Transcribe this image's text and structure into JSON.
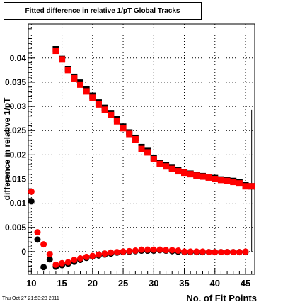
{
  "chart_data": {
    "type": "scatter",
    "title": "Fitted difference in relative 1/pT  Global Tracks",
    "xlabel": "No. of Fit Points",
    "ylabel": "difference in relative 1/pT",
    "timestamp": "Thu Oct 27 21:53:23 2011",
    "xlim": [
      9.5,
      46.5
    ],
    "ylim": [
      -0.0047,
      0.047
    ],
    "grid": true,
    "x_ticks": [
      10,
      15,
      20,
      25,
      30,
      35,
      40,
      45
    ],
    "y_ticks": [
      0,
      0.005,
      0.01,
      0.015,
      0.02,
      0.025,
      0.03,
      0.035,
      0.04
    ],
    "y_tick_labels": [
      "0",
      "0.005",
      "0.01",
      "0.015",
      "0.02",
      "0.025",
      "0.03",
      "0.035",
      "0.04"
    ],
    "colors": {
      "black_series": "#000000",
      "red_series": "#ff0000"
    },
    "series": [
      {
        "marker": "square",
        "color": "#000000",
        "points": [
          [
            14,
            0.0418
          ],
          [
            15,
            0.0398
          ],
          [
            16,
            0.0377
          ],
          [
            17,
            0.0361
          ],
          [
            18,
            0.0349
          ],
          [
            19,
            0.0336
          ],
          [
            20,
            0.0322
          ],
          [
            21,
            0.0308
          ],
          [
            22,
            0.0297
          ],
          [
            23,
            0.0286
          ],
          [
            24,
            0.0274
          ],
          [
            25,
            0.0258
          ],
          [
            26,
            0.0246
          ],
          [
            27,
            0.0235
          ],
          [
            28,
            0.0216
          ],
          [
            29,
            0.0208
          ],
          [
            30,
            0.0194
          ],
          [
            31,
            0.0183
          ],
          [
            32,
            0.0178
          ],
          [
            33,
            0.0173
          ],
          [
            34,
            0.0168
          ],
          [
            35,
            0.0164
          ],
          [
            36,
            0.0161
          ],
          [
            37,
            0.0158
          ],
          [
            38,
            0.0156
          ],
          [
            39,
            0.0154
          ],
          [
            40,
            0.0152
          ],
          [
            41,
            0.0149
          ],
          [
            42,
            0.0148
          ],
          [
            43,
            0.0146
          ],
          [
            44,
            0.0143
          ],
          [
            45,
            0.0137
          ],
          [
            46,
            0.0135
          ]
        ]
      },
      {
        "marker": "square",
        "color": "#ff0000",
        "points": [
          [
            14,
            0.0415
          ],
          [
            15,
            0.0397
          ],
          [
            16,
            0.0375
          ],
          [
            17,
            0.0358
          ],
          [
            18,
            0.0345
          ],
          [
            19,
            0.0331
          ],
          [
            20,
            0.0318
          ],
          [
            21,
            0.0304
          ],
          [
            22,
            0.0293
          ],
          [
            23,
            0.0282
          ],
          [
            24,
            0.0269
          ],
          [
            25,
            0.0255
          ],
          [
            26,
            0.0243
          ],
          [
            27,
            0.0232
          ],
          [
            28,
            0.0212
          ],
          [
            29,
            0.0205
          ],
          [
            30,
            0.0191
          ],
          [
            31,
            0.0181
          ],
          [
            32,
            0.0176
          ],
          [
            33,
            0.0171
          ],
          [
            34,
            0.0166
          ],
          [
            35,
            0.0163
          ],
          [
            36,
            0.016
          ],
          [
            37,
            0.0157
          ],
          [
            38,
            0.0155
          ],
          [
            39,
            0.0153
          ],
          [
            40,
            0.015
          ],
          [
            41,
            0.0148
          ],
          [
            42,
            0.0146
          ],
          [
            43,
            0.0144
          ],
          [
            44,
            0.0141
          ],
          [
            45,
            0.0135
          ],
          [
            46,
            0.0135
          ]
        ]
      },
      {
        "marker": "circle",
        "color": "#000000",
        "points": [
          [
            10,
            0.0104
          ],
          [
            11,
            0.0025
          ],
          [
            12,
            -0.0032
          ],
          [
            13,
            -0.0016
          ],
          [
            14,
            -0.0031
          ],
          [
            15,
            -0.0028
          ],
          [
            16,
            -0.0025
          ],
          [
            17,
            -0.0021
          ],
          [
            18,
            -0.0017
          ],
          [
            19,
            -0.0013
          ],
          [
            20,
            -0.001
          ],
          [
            21,
            -0.0008
          ],
          [
            22,
            -0.0006
          ],
          [
            23,
            -0.0004
          ],
          [
            24,
            -0.0002
          ],
          [
            25,
            -0.0001
          ],
          [
            26,
            0.0
          ],
          [
            27,
            0.0001
          ],
          [
            28,
            0.0002
          ],
          [
            29,
            0.0002
          ],
          [
            30,
            0.0002
          ],
          [
            31,
            0.0003
          ],
          [
            32,
            0.0002
          ],
          [
            33,
            0.0001
          ],
          [
            34,
            0.0
          ],
          [
            35,
            -0.0001
          ],
          [
            36,
            -0.0001
          ],
          [
            37,
            -0.0001
          ],
          [
            38,
            -0.0001
          ],
          [
            39,
            -0.0001
          ],
          [
            40,
            -0.0001
          ],
          [
            41,
            -0.0001
          ],
          [
            42,
            -0.0001
          ],
          [
            43,
            -0.0001
          ],
          [
            44,
            -0.0001
          ],
          [
            45,
            -0.0001
          ]
        ]
      },
      {
        "marker": "circle",
        "color": "#ff0000",
        "points": [
          [
            10,
            0.0124
          ],
          [
            11,
            0.004
          ],
          [
            12,
            0.0015
          ],
          [
            13,
            -0.0005
          ],
          [
            14,
            -0.0027
          ],
          [
            15,
            -0.0024
          ],
          [
            16,
            -0.0022
          ],
          [
            17,
            -0.0017
          ],
          [
            18,
            -0.0014
          ],
          [
            19,
            -0.0011
          ],
          [
            20,
            -0.0009
          ],
          [
            21,
            -0.0006
          ],
          [
            22,
            -0.0004
          ],
          [
            23,
            -0.0002
          ],
          [
            24,
            -0.0001
          ],
          [
            25,
            0.0
          ],
          [
            26,
            0.0001
          ],
          [
            27,
            0.0002
          ],
          [
            28,
            0.0004
          ],
          [
            29,
            0.0004
          ],
          [
            30,
            0.0004
          ],
          [
            31,
            0.0004
          ],
          [
            32,
            0.0003
          ],
          [
            33,
            0.0003
          ],
          [
            34,
            0.0002
          ],
          [
            35,
            0.0
          ],
          [
            36,
            0.0
          ],
          [
            37,
            0.0
          ],
          [
            38,
            0.0
          ],
          [
            39,
            -0.0001
          ],
          [
            40,
            -0.0001
          ],
          [
            41,
            -0.0001
          ],
          [
            42,
            -0.0001
          ],
          [
            43,
            -0.0001
          ],
          [
            44,
            -0.0001
          ],
          [
            45,
            0.0
          ]
        ]
      }
    ],
    "error_bars": [
      {
        "x": 46,
        "y_low": 0.0,
        "y_high": 0.0293
      }
    ]
  }
}
